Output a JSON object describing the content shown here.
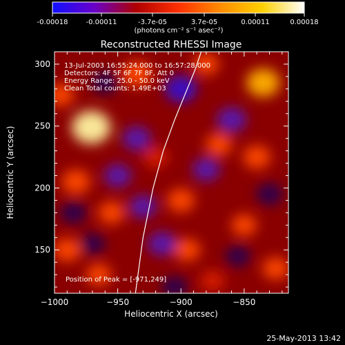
{
  "colorbar": {
    "ticks": [
      "-0.00018",
      "-0.00011",
      "-3.7e-05",
      "3.7e-05",
      "0.00011",
      "0.00018"
    ],
    "tick_values": [
      -0.00018,
      -0.00011,
      -3.7e-05,
      3.7e-05,
      0.00011,
      0.00018
    ],
    "range": [
      -0.00018,
      0.00018
    ],
    "units_label": "(photons cm⁻² s⁻¹ asec⁻²)",
    "stops": [
      "#1010ff",
      "#6a00c8",
      "#b00000",
      "#ff3000",
      "#ff8c00",
      "#ffd000",
      "#ffffff"
    ]
  },
  "image": {
    "title": "Reconstructed RHESSI Image",
    "info_lines": [
      "13-Jul-2003 16:55:24.000 to 16:57:28.000",
      "Detectors: 4F 5F 6F 7F 8F, Att 0",
      "Energy Range: 25.0 - 50.0 keV",
      "Clean     Total counts: 1.49E+03"
    ],
    "peak_label": "Position of Peak = [-971,249]",
    "footer_date": "25-May-2013 13:42"
  },
  "chart_data": {
    "type": "heatmap",
    "title": "Reconstructed RHESSI Image",
    "xlabel": "Heliocentric X (arcsec)",
    "ylabel": "Heliocentric Y (arcsec)",
    "xlim": [
      -1000,
      -815
    ],
    "ylim": [
      115,
      310
    ],
    "xticks": [
      -1000,
      -950,
      -900,
      -850
    ],
    "yticks": [
      150,
      200,
      250,
      300
    ],
    "peak_position": [
      -971,
      249
    ],
    "limb_curve": {
      "x": [
        -936,
        -930,
        -922,
        -914,
        -905,
        -897,
        -889,
        -884
      ],
      "y": [
        115,
        160,
        200,
        230,
        255,
        275,
        295,
        310
      ]
    },
    "blobs": [
      {
        "x": -971,
        "y": 249,
        "level": 1.0
      },
      {
        "x": -935,
        "y": 292,
        "level": 0.6
      },
      {
        "x": -835,
        "y": 285,
        "level": 0.75
      },
      {
        "x": -983,
        "y": 205,
        "level": 0.55
      },
      {
        "x": -955,
        "y": 180,
        "level": 0.45
      },
      {
        "x": -900,
        "y": 190,
        "level": 0.5
      },
      {
        "x": -870,
        "y": 235,
        "level": 0.45
      },
      {
        "x": -840,
        "y": 225,
        "level": 0.5
      },
      {
        "x": -990,
        "y": 150,
        "level": 0.5
      },
      {
        "x": -965,
        "y": 130,
        "level": 0.4
      },
      {
        "x": -895,
        "y": 150,
        "level": 0.45
      },
      {
        "x": -850,
        "y": 170,
        "level": 0.4
      },
      {
        "x": -825,
        "y": 135,
        "level": 0.45
      },
      {
        "x": -875,
        "y": 125,
        "level": 0.35
      },
      {
        "x": -995,
        "y": 275,
        "level": 0.45
      },
      {
        "x": -920,
        "y": 225,
        "level": 0.35
      },
      {
        "x": -880,
        "y": 300,
        "level": 0.4
      },
      {
        "x": -900,
        "y": 280,
        "level": -0.7
      },
      {
        "x": -935,
        "y": 240,
        "level": -0.55
      },
      {
        "x": -915,
        "y": 155,
        "level": -0.55
      },
      {
        "x": -860,
        "y": 255,
        "level": -0.6
      },
      {
        "x": -950,
        "y": 210,
        "level": -0.5
      },
      {
        "x": -880,
        "y": 215,
        "level": -0.5
      },
      {
        "x": -830,
        "y": 195,
        "level": -0.45
      },
      {
        "x": -985,
        "y": 180,
        "level": -0.45
      },
      {
        "x": -905,
        "y": 120,
        "level": -0.45
      },
      {
        "x": -855,
        "y": 145,
        "level": -0.4
      },
      {
        "x": -970,
        "y": 155,
        "level": -0.4
      },
      {
        "x": -960,
        "y": 285,
        "level": -0.45
      },
      {
        "x": -930,
        "y": 185,
        "level": -0.5
      }
    ]
  }
}
